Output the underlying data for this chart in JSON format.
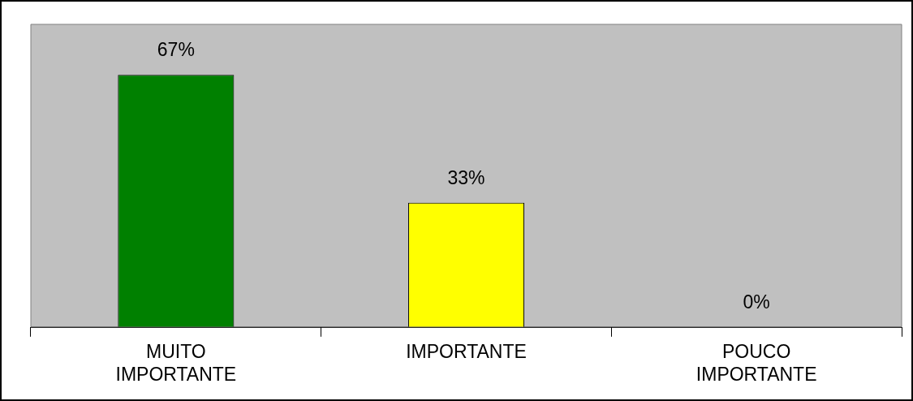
{
  "chart_data": {
    "type": "bar",
    "categories": [
      "MUITO IMPORTANTE",
      "IMPORTANTE",
      "POUCO IMPORTANTE"
    ],
    "values": [
      67,
      33,
      0
    ],
    "colors": [
      "#008000",
      "#ffff00",
      "#0000ff"
    ],
    "value_labels": [
      "67%",
      "33%",
      "0%"
    ],
    "tick_labels": "x",
    "grid": false,
    "legend": false
  }
}
